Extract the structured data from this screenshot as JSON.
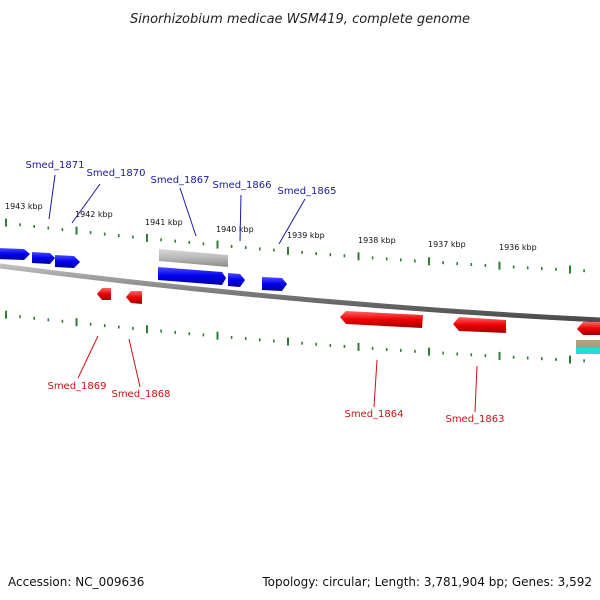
{
  "title": "Sinorhizobium medicae WSM419, complete genome",
  "footer": {
    "accession": "Accession: NC_009636",
    "summary": "Topology: circular; Length: 3,781,904 bp; Genes: 3,592"
  },
  "colors": {
    "forward_strand": "#0000ee",
    "reverse_strand": "#ee0000",
    "backbone": "#888888",
    "ticks": "#2e7d32",
    "label_forward": "#1a1aa6",
    "label_reverse": "#cc1111"
  },
  "scale_ticks": [
    {
      "label": "1943 kbp"
    },
    {
      "label": "1942 kbp"
    },
    {
      "label": "1941 kbp"
    },
    {
      "label": "1940 kbp"
    },
    {
      "label": "1939 kbp"
    },
    {
      "label": "1938 kbp"
    },
    {
      "label": "1937 kbp"
    },
    {
      "label": "1936 kbp"
    }
  ],
  "genes": {
    "forward": [
      "Smed_1871",
      "Smed_1870",
      "Smed_1867",
      "Smed_1866",
      "Smed_1865"
    ],
    "reverse": [
      "Smed_1869",
      "Smed_1868",
      "Smed_1864",
      "Smed_1863"
    ]
  }
}
